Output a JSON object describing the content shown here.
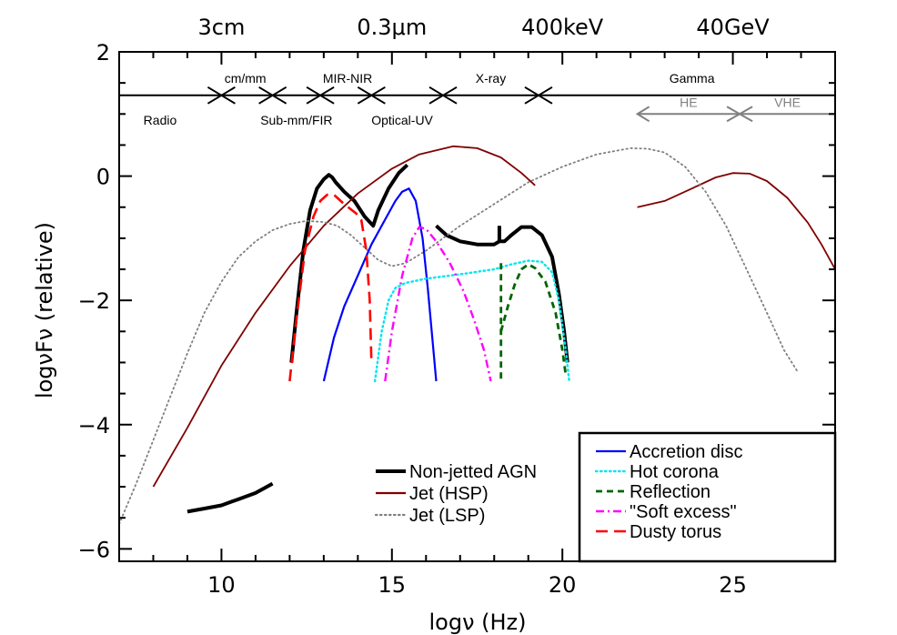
{
  "chart_data": {
    "type": "line",
    "title": "",
    "xlabel": "logν (Hz)",
    "ylabel": "logνFν (relative)",
    "xlim": [
      7,
      28
    ],
    "ylim": [
      -6.2,
      2
    ],
    "x_ticks": [
      "10",
      "15",
      "20",
      "25"
    ],
    "y_ticks": [
      "2",
      "0",
      "−2",
      "−4",
      "−6"
    ],
    "top_axis_labels": [
      {
        "text": "3cm",
        "x": 10
      },
      {
        "text": "0.3μm",
        "x": 15
      },
      {
        "text": "400keV",
        "x": 20
      },
      {
        "text": "40GeV",
        "x": 25
      }
    ],
    "bands": {
      "line_y": 1.3,
      "markers": [
        10,
        11.5,
        12.9,
        14.4,
        16.5,
        19.3
      ],
      "labels_above": [
        {
          "text": "cm/mm",
          "x": 10.7
        },
        {
          "text": "MIR-NIR",
          "x": 13.7
        },
        {
          "text": "X-ray",
          "x": 17.9
        },
        {
          "text": "Gamma",
          "x": 23.8
        }
      ],
      "labels_below": [
        {
          "text": "Radio",
          "x": 8.2
        },
        {
          "text": "Sub-mm/FIR",
          "x": 12.2
        },
        {
          "text": "Optical-UV",
          "x": 15.3
        }
      ],
      "gamma_sub": {
        "y": 1.0,
        "from": 22.2,
        "split": 25.2,
        "to": 28,
        "labels": [
          {
            "text": "HE",
            "x": 23.7
          },
          {
            "text": "VHE",
            "x": 26.6
          }
        ]
      }
    },
    "series": [
      {
        "name": "Non-jetted AGN",
        "style": "solid",
        "color": "#000000",
        "width": 4,
        "segments": [
          [
            [
              12.05,
              -3.0
            ],
            [
              12.2,
              -2.2
            ],
            [
              12.4,
              -1.2
            ],
            [
              12.6,
              -0.55
            ],
            [
              12.8,
              -0.2
            ],
            [
              13.0,
              -0.05
            ],
            [
              13.15,
              0.02
            ],
            [
              13.25,
              -0.02
            ],
            [
              13.35,
              -0.1
            ],
            [
              13.6,
              -0.25
            ],
            [
              13.9,
              -0.4
            ],
            [
              14.2,
              -0.65
            ],
            [
              14.45,
              -0.8
            ],
            [
              14.6,
              -0.55
            ],
            [
              14.9,
              -0.2
            ],
            [
              15.2,
              0.05
            ],
            [
              15.45,
              0.18
            ]
          ],
          [
            [
              16.3,
              -0.8
            ],
            [
              16.6,
              -0.95
            ],
            [
              17.0,
              -1.05
            ],
            [
              17.5,
              -1.1
            ],
            [
              18.0,
              -1.1
            ],
            [
              18.15,
              -1.05
            ],
            [
              18.3,
              -1.05
            ],
            [
              18.5,
              -0.95
            ],
            [
              18.8,
              -0.82
            ],
            [
              19.1,
              -0.82
            ],
            [
              19.4,
              -0.95
            ],
            [
              19.7,
              -1.3
            ],
            [
              19.9,
              -1.9
            ],
            [
              20.05,
              -2.5
            ],
            [
              20.15,
              -3.0
            ]
          ],
          [
            [
              18.15,
              -1.05
            ],
            [
              18.15,
              -0.8
            ]
          ],
          [
            [
              9.0,
              -5.4
            ],
            [
              9.5,
              -5.35
            ],
            [
              10.0,
              -5.3
            ],
            [
              10.5,
              -5.2
            ],
            [
              11.0,
              -5.1
            ],
            [
              11.5,
              -4.95
            ]
          ]
        ]
      },
      {
        "name": "Jet (HSP)",
        "style": "solid",
        "color": "#800000",
        "width": 1.8,
        "segments": [
          [
            [
              8.0,
              -5.0
            ],
            [
              9.0,
              -4.05
            ],
            [
              10.0,
              -3.05
            ],
            [
              11.0,
              -2.2
            ],
            [
              12.0,
              -1.45
            ],
            [
              13.0,
              -0.8
            ],
            [
              14.0,
              -0.28
            ],
            [
              15.0,
              0.12
            ],
            [
              15.8,
              0.35
            ],
            [
              16.8,
              0.48
            ],
            [
              17.5,
              0.45
            ],
            [
              18.2,
              0.3
            ],
            [
              18.8,
              0.05
            ],
            [
              19.2,
              -0.15
            ]
          ],
          [
            [
              22.2,
              -0.5
            ],
            [
              23.0,
              -0.4
            ],
            [
              23.8,
              -0.2
            ],
            [
              24.5,
              -0.02
            ],
            [
              25.0,
              0.05
            ],
            [
              25.5,
              0.04
            ],
            [
              26.0,
              -0.08
            ],
            [
              26.6,
              -0.35
            ],
            [
              27.2,
              -0.75
            ],
            [
              27.6,
              -1.1
            ],
            [
              28.0,
              -1.5
            ]
          ]
        ]
      },
      {
        "name": "Jet (LSP)",
        "style": "dotted",
        "color": "#808080",
        "width": 1.8,
        "segments": [
          [
            [
              7.0,
              -5.6
            ],
            [
              7.5,
              -4.95
            ],
            [
              8.0,
              -4.25
            ],
            [
              8.5,
              -3.55
            ],
            [
              9.0,
              -2.85
            ],
            [
              9.5,
              -2.2
            ],
            [
              10.0,
              -1.7
            ],
            [
              10.5,
              -1.3
            ],
            [
              11.0,
              -1.05
            ],
            [
              11.5,
              -0.87
            ],
            [
              12.0,
              -0.77
            ],
            [
              12.5,
              -0.72
            ],
            [
              13.0,
              -0.74
            ],
            [
              13.4,
              -0.8
            ],
            [
              13.8,
              -0.95
            ],
            [
              14.2,
              -1.15
            ],
            [
              14.6,
              -1.35
            ],
            [
              15.0,
              -1.45
            ],
            [
              15.4,
              -1.4
            ],
            [
              16.0,
              -1.2
            ],
            [
              17.0,
              -0.8
            ],
            [
              18.0,
              -0.45
            ],
            [
              19.0,
              -0.1
            ],
            [
              20.0,
              0.15
            ],
            [
              21.0,
              0.35
            ],
            [
              22.0,
              0.45
            ],
            [
              22.5,
              0.44
            ],
            [
              23.0,
              0.38
            ],
            [
              23.6,
              0.15
            ],
            [
              24.2,
              -0.25
            ],
            [
              24.8,
              -0.8
            ],
            [
              25.4,
              -1.5
            ],
            [
              26.0,
              -2.2
            ],
            [
              26.5,
              -2.8
            ],
            [
              26.9,
              -3.15
            ]
          ]
        ]
      },
      {
        "name": "Accretion disc",
        "style": "solid",
        "color": "#0000ff",
        "width": 2.2,
        "segments": [
          [
            [
              13.0,
              -3.3
            ],
            [
              13.3,
              -2.6
            ],
            [
              13.6,
              -2.1
            ],
            [
              14.0,
              -1.6
            ],
            [
              14.4,
              -1.1
            ],
            [
              14.8,
              -0.7
            ],
            [
              15.1,
              -0.4
            ],
            [
              15.3,
              -0.25
            ],
            [
              15.5,
              -0.2
            ],
            [
              15.7,
              -0.4
            ],
            [
              15.9,
              -1.0
            ],
            [
              16.05,
              -1.8
            ],
            [
              16.2,
              -2.7
            ],
            [
              16.3,
              -3.3
            ]
          ]
        ]
      },
      {
        "name": "Hot corona",
        "style": "dotted",
        "color": "#00e5ee",
        "width": 2.4,
        "segments": [
          [
            [
              14.5,
              -3.3
            ],
            [
              14.7,
              -2.5
            ],
            [
              14.9,
              -2.0
            ],
            [
              15.1,
              -1.8
            ],
            [
              15.4,
              -1.72
            ],
            [
              16.0,
              -1.65
            ],
            [
              17.0,
              -1.58
            ],
            [
              18.0,
              -1.5
            ],
            [
              18.5,
              -1.42
            ],
            [
              19.0,
              -1.36
            ],
            [
              19.4,
              -1.38
            ],
            [
              19.7,
              -1.55
            ],
            [
              19.9,
              -2.0
            ],
            [
              20.1,
              -2.8
            ],
            [
              20.2,
              -3.3
            ]
          ]
        ]
      },
      {
        "name": "Reflection",
        "style": "dashed",
        "color": "#006400",
        "width": 2.8,
        "segments": [
          [
            [
              18.2,
              -1.4
            ],
            [
              18.2,
              -3.3
            ]
          ],
          [
            [
              18.2,
              -2.5
            ],
            [
              18.4,
              -2.1
            ],
            [
              18.6,
              -1.75
            ],
            [
              18.8,
              -1.5
            ],
            [
              19.0,
              -1.42
            ],
            [
              19.2,
              -1.48
            ],
            [
              19.5,
              -1.7
            ],
            [
              19.8,
              -2.2
            ],
            [
              20.0,
              -2.8
            ],
            [
              20.1,
              -3.2
            ]
          ]
        ]
      },
      {
        "name": "\"Soft excess\"",
        "style": "dashdot",
        "color": "#ff00ff",
        "width": 2.4,
        "segments": [
          [
            [
              14.8,
              -3.3
            ],
            [
              15.0,
              -2.5
            ],
            [
              15.3,
              -1.6
            ],
            [
              15.6,
              -1.0
            ],
            [
              15.8,
              -0.82
            ],
            [
              16.0,
              -0.85
            ],
            [
              16.3,
              -1.05
            ],
            [
              16.7,
              -1.4
            ],
            [
              17.1,
              -1.85
            ],
            [
              17.4,
              -2.3
            ],
            [
              17.7,
              -2.8
            ],
            [
              17.9,
              -3.3
            ]
          ]
        ]
      },
      {
        "name": "Dusty torus",
        "style": "longdash",
        "color": "#ff0000",
        "width": 2.6,
        "segments": [
          [
            [
              12.0,
              -3.3
            ],
            [
              12.2,
              -2.3
            ],
            [
              12.45,
              -1.2
            ],
            [
              12.7,
              -0.65
            ],
            [
              12.9,
              -0.4
            ],
            [
              13.1,
              -0.3
            ],
            [
              13.3,
              -0.3
            ],
            [
              13.6,
              -0.45
            ],
            [
              13.95,
              -0.6
            ],
            [
              14.1,
              -0.7
            ],
            [
              14.25,
              -1.2
            ],
            [
              14.35,
              -2.0
            ],
            [
              14.4,
              -3.0
            ]
          ]
        ]
      }
    ],
    "legend": {
      "left_group": [
        "Non-jetted AGN",
        "Jet (HSP)",
        "Jet (LSP)"
      ],
      "right_group": [
        "Accretion disc",
        "Hot corona",
        "Reflection",
        "\"Soft excess\"",
        "Dusty torus"
      ]
    }
  }
}
